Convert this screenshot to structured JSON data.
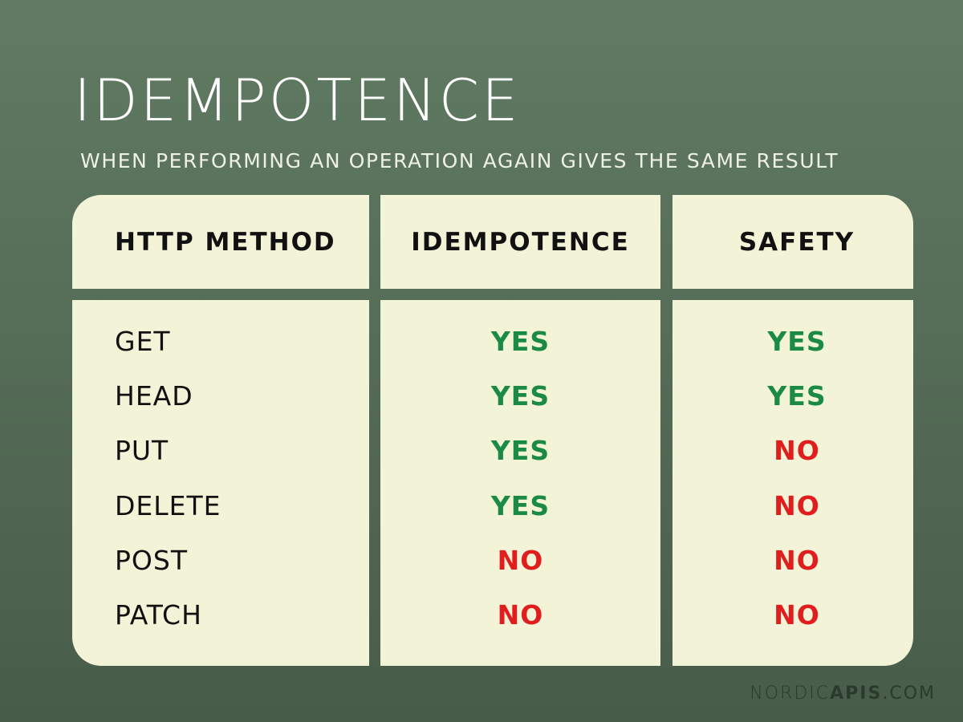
{
  "header": {
    "title": "IDEMPOTENCE",
    "subtitle": "WHEN PERFORMING AN OPERATION AGAIN GIVES THE SAME RESULT"
  },
  "table": {
    "columns": [
      "HTTP METHOD",
      "IDEMPOTENCE",
      "SAFETY"
    ],
    "rows": [
      [
        {
          "text": "GET"
        },
        {
          "text": "YES",
          "color": "#1a8a45"
        },
        {
          "text": "YES",
          "color": "#1a8a45"
        }
      ],
      [
        {
          "text": "HEAD"
        },
        {
          "text": "YES",
          "color": "#1a8a45"
        },
        {
          "text": "YES",
          "color": "#1a8a45"
        }
      ],
      [
        {
          "text": "PUT"
        },
        {
          "text": "YES",
          "color": "#1a8a45"
        },
        {
          "text": "NO",
          "color": "#e01e1e"
        }
      ],
      [
        {
          "text": "DELETE"
        },
        {
          "text": "YES",
          "color": "#1a8a45"
        },
        {
          "text": "NO",
          "color": "#e01e1e"
        }
      ],
      [
        {
          "text": "POST"
        },
        {
          "text": "NO",
          "color": "#e01e1e"
        },
        {
          "text": "NO",
          "color": "#e01e1e"
        }
      ],
      [
        {
          "text": "PATCH"
        },
        {
          "text": "NO",
          "color": "#e01e1e"
        },
        {
          "text": "NO",
          "color": "#e01e1e"
        }
      ]
    ]
  },
  "footer": {
    "brand": [
      "NORDIC",
      "APIS",
      ".COM"
    ]
  }
}
